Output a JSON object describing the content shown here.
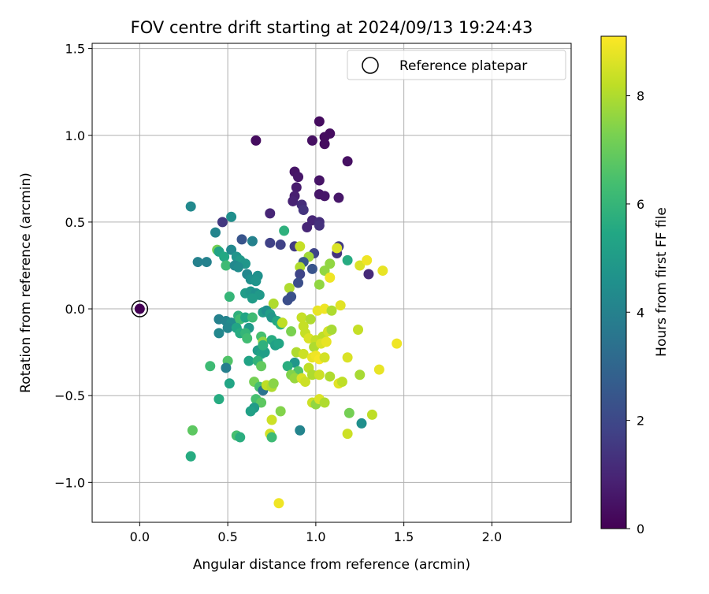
{
  "chart_data": {
    "type": "scatter",
    "title": "FOV centre drift starting at 2024/09/13 19:24:43",
    "xlabel": "Angular distance from reference (arcmin)",
    "ylabel": "Rotation from reference (arcmin)",
    "xlim": [
      -0.27,
      2.45
    ],
    "ylim": [
      -1.23,
      1.53
    ],
    "xticks": [
      0.0,
      0.5,
      1.0,
      1.5,
      2.0
    ],
    "xtick_labels": [
      "0.0",
      "0.5",
      "1.0",
      "1.5",
      "2.0"
    ],
    "yticks": [
      -1.0,
      -0.5,
      0.0,
      0.5,
      1.0,
      1.5
    ],
    "ytick_labels": [
      "−1.0",
      "−0.5",
      "0.0",
      "0.5",
      "1.0",
      "1.5"
    ],
    "grid": true,
    "legend": {
      "placement": "top-right",
      "entries": [
        {
          "label": "Reference platepar",
          "marker": "open-circle"
        }
      ]
    },
    "reference_point": {
      "x": 0.0,
      "y": 0.0,
      "t": 0.0
    },
    "colorbar": {
      "label": "Hours from first FF file",
      "colormap": "viridis",
      "range": [
        0,
        9.1
      ],
      "ticks": [
        0,
        2,
        4,
        6,
        8
      ],
      "tick_labels": [
        "0",
        "2",
        "4",
        "6",
        "8"
      ]
    },
    "points": [
      {
        "x": 0.66,
        "y": 0.97,
        "t": 0.3
      },
      {
        "x": 1.02,
        "y": 1.08,
        "t": 0.3
      },
      {
        "x": 1.08,
        "y": 1.01,
        "t": 0.3
      },
      {
        "x": 1.05,
        "y": 0.99,
        "t": 0.3
      },
      {
        "x": 0.98,
        "y": 0.97,
        "t": 0.4
      },
      {
        "x": 1.05,
        "y": 0.95,
        "t": 0.3
      },
      {
        "x": 1.18,
        "y": 0.85,
        "t": 0.4
      },
      {
        "x": 0.88,
        "y": 0.79,
        "t": 0.5
      },
      {
        "x": 0.9,
        "y": 0.76,
        "t": 0.6
      },
      {
        "x": 1.02,
        "y": 0.74,
        "t": 0.5
      },
      {
        "x": 0.89,
        "y": 0.7,
        "t": 0.7
      },
      {
        "x": 1.02,
        "y": 0.66,
        "t": 0.6
      },
      {
        "x": 1.05,
        "y": 0.65,
        "t": 0.6
      },
      {
        "x": 1.13,
        "y": 0.64,
        "t": 0.6
      },
      {
        "x": 0.88,
        "y": 0.65,
        "t": 0.8
      },
      {
        "x": 0.87,
        "y": 0.62,
        "t": 0.9
      },
      {
        "x": 0.92,
        "y": 0.6,
        "t": 1.2
      },
      {
        "x": 0.93,
        "y": 0.57,
        "t": 1.4
      },
      {
        "x": 0.74,
        "y": 0.55,
        "t": 1.0
      },
      {
        "x": 0.98,
        "y": 0.51,
        "t": 1.0
      },
      {
        "x": 1.02,
        "y": 0.5,
        "t": 1.2
      },
      {
        "x": 1.02,
        "y": 0.48,
        "t": 1.3
      },
      {
        "x": 0.95,
        "y": 0.47,
        "t": 1.0
      },
      {
        "x": 0.47,
        "y": 0.5,
        "t": 1.5
      },
      {
        "x": 0.29,
        "y": 0.59,
        "t": 4.3
      },
      {
        "x": 0.52,
        "y": 0.53,
        "t": 4.5
      },
      {
        "x": 0.43,
        "y": 0.44,
        "t": 4.1
      },
      {
        "x": 0.58,
        "y": 0.4,
        "t": 2.4
      },
      {
        "x": 0.64,
        "y": 0.39,
        "t": 4.0
      },
      {
        "x": 0.74,
        "y": 0.38,
        "t": 1.8
      },
      {
        "x": 0.8,
        "y": 0.37,
        "t": 1.8
      },
      {
        "x": 0.82,
        "y": 0.45,
        "t": 5.8
      },
      {
        "x": 0.88,
        "y": 0.36,
        "t": 1.6
      },
      {
        "x": 0.91,
        "y": 0.36,
        "t": 8.3
      },
      {
        "x": 1.13,
        "y": 0.36,
        "t": 1.6
      },
      {
        "x": 1.12,
        "y": 0.32,
        "t": 1.4
      },
      {
        "x": 0.99,
        "y": 0.32,
        "t": 1.9
      },
      {
        "x": 0.96,
        "y": 0.3,
        "t": 7.8
      },
      {
        "x": 0.93,
        "y": 0.27,
        "t": 2.5
      },
      {
        "x": 0.91,
        "y": 0.24,
        "t": 8.0
      },
      {
        "x": 1.05,
        "y": 0.22,
        "t": 7.6
      },
      {
        "x": 1.08,
        "y": 0.26,
        "t": 7.6
      },
      {
        "x": 1.18,
        "y": 0.28,
        "t": 5.6
      },
      {
        "x": 1.25,
        "y": 0.25,
        "t": 8.6
      },
      {
        "x": 1.29,
        "y": 0.28,
        "t": 8.9
      },
      {
        "x": 1.3,
        "y": 0.2,
        "t": 1.1
      },
      {
        "x": 1.38,
        "y": 0.22,
        "t": 8.8
      },
      {
        "x": 1.12,
        "y": 0.35,
        "t": 8.6
      },
      {
        "x": 0.44,
        "y": 0.34,
        "t": 7.2
      },
      {
        "x": 0.45,
        "y": 0.33,
        "t": 5.3
      },
      {
        "x": 0.48,
        "y": 0.3,
        "t": 5.5
      },
      {
        "x": 0.52,
        "y": 0.34,
        "t": 4.3
      },
      {
        "x": 0.55,
        "y": 0.3,
        "t": 4.7
      },
      {
        "x": 0.57,
        "y": 0.28,
        "t": 4.9
      },
      {
        "x": 0.6,
        "y": 0.26,
        "t": 4.8
      },
      {
        "x": 0.33,
        "y": 0.27,
        "t": 4.0
      },
      {
        "x": 0.38,
        "y": 0.27,
        "t": 4.0
      },
      {
        "x": 0.49,
        "y": 0.25,
        "t": 6.2
      },
      {
        "x": 0.54,
        "y": 0.25,
        "t": 4.2
      },
      {
        "x": 0.56,
        "y": 0.24,
        "t": 4.4
      },
      {
        "x": 0.61,
        "y": 0.2,
        "t": 4.2
      },
      {
        "x": 0.63,
        "y": 0.17,
        "t": 4.5
      },
      {
        "x": 0.67,
        "y": 0.19,
        "t": 4.6
      },
      {
        "x": 0.66,
        "y": 0.16,
        "t": 4.7
      },
      {
        "x": 0.91,
        "y": 0.2,
        "t": 1.9
      },
      {
        "x": 0.9,
        "y": 0.15,
        "t": 2.2
      },
      {
        "x": 0.98,
        "y": 0.23,
        "t": 2.4
      },
      {
        "x": 1.02,
        "y": 0.14,
        "t": 7.6
      },
      {
        "x": 1.08,
        "y": 0.18,
        "t": 8.9
      },
      {
        "x": 0.85,
        "y": 0.12,
        "t": 8.0
      },
      {
        "x": 0.86,
        "y": 0.07,
        "t": 2.3
      },
      {
        "x": 0.84,
        "y": 0.05,
        "t": 2.2
      },
      {
        "x": 0.6,
        "y": 0.09,
        "t": 5.0
      },
      {
        "x": 0.63,
        "y": 0.1,
        "t": 4.8
      },
      {
        "x": 0.66,
        "y": 0.09,
        "t": 4.6
      },
      {
        "x": 0.68,
        "y": 0.08,
        "t": 4.9
      },
      {
        "x": 0.64,
        "y": 0.06,
        "t": 5.0
      },
      {
        "x": 0.51,
        "y": 0.07,
        "t": 6.0
      },
      {
        "x": 0.76,
        "y": 0.03,
        "t": 8.0
      },
      {
        "x": 0.7,
        "y": -0.02,
        "t": 5.0
      },
      {
        "x": 0.72,
        "y": -0.01,
        "t": 4.5
      },
      {
        "x": 0.74,
        "y": -0.03,
        "t": 5.1
      },
      {
        "x": 0.75,
        "y": -0.05,
        "t": 4.8
      },
      {
        "x": 0.78,
        "y": -0.07,
        "t": 5.5
      },
      {
        "x": 0.8,
        "y": -0.09,
        "t": 5.9
      },
      {
        "x": 0.81,
        "y": -0.08,
        "t": 8.2
      },
      {
        "x": 0.92,
        "y": -0.05,
        "t": 8.3
      },
      {
        "x": 0.97,
        "y": -0.06,
        "t": 8.0
      },
      {
        "x": 1.01,
        "y": -0.01,
        "t": 8.8
      },
      {
        "x": 1.05,
        "y": 0.0,
        "t": 8.9
      },
      {
        "x": 1.09,
        "y": -0.01,
        "t": 8.0
      },
      {
        "x": 1.14,
        "y": 0.02,
        "t": 8.7
      },
      {
        "x": 0.45,
        "y": -0.06,
        "t": 4.0
      },
      {
        "x": 0.49,
        "y": -0.07,
        "t": 4.1
      },
      {
        "x": 0.52,
        "y": -0.08,
        "t": 4.4
      },
      {
        "x": 0.56,
        "y": -0.04,
        "t": 5.8
      },
      {
        "x": 0.57,
        "y": -0.06,
        "t": 6.3
      },
      {
        "x": 0.6,
        "y": -0.05,
        "t": 5.4
      },
      {
        "x": 0.64,
        "y": -0.05,
        "t": 6.2
      },
      {
        "x": 0.62,
        "y": -0.11,
        "t": 4.9
      },
      {
        "x": 0.45,
        "y": -0.14,
        "t": 4.2
      },
      {
        "x": 0.5,
        "y": -0.11,
        "t": 4.2
      },
      {
        "x": 0.55,
        "y": -0.11,
        "t": 5.4
      },
      {
        "x": 0.57,
        "y": -0.14,
        "t": 5.6
      },
      {
        "x": 0.6,
        "y": -0.14,
        "t": 6.0
      },
      {
        "x": 0.61,
        "y": -0.17,
        "t": 6.3
      },
      {
        "x": 0.69,
        "y": -0.16,
        "t": 6.4
      },
      {
        "x": 0.7,
        "y": -0.19,
        "t": 7.6
      },
      {
        "x": 0.75,
        "y": -0.18,
        "t": 5.6
      },
      {
        "x": 0.77,
        "y": -0.21,
        "t": 5.2
      },
      {
        "x": 0.79,
        "y": -0.2,
        "t": 5.4
      },
      {
        "x": 0.86,
        "y": -0.13,
        "t": 7.3
      },
      {
        "x": 0.93,
        "y": -0.1,
        "t": 8.3
      },
      {
        "x": 0.94,
        "y": -0.14,
        "t": 8.3
      },
      {
        "x": 0.96,
        "y": -0.17,
        "t": 8.6
      },
      {
        "x": 1.0,
        "y": -0.18,
        "t": 8.3
      },
      {
        "x": 1.04,
        "y": -0.16,
        "t": 8.2
      },
      {
        "x": 1.07,
        "y": -0.13,
        "t": 8.5
      },
      {
        "x": 1.09,
        "y": -0.12,
        "t": 7.9
      },
      {
        "x": 0.99,
        "y": -0.22,
        "t": 8.0
      },
      {
        "x": 1.03,
        "y": -0.2,
        "t": 8.6
      },
      {
        "x": 1.06,
        "y": -0.19,
        "t": 8.8
      },
      {
        "x": 1.24,
        "y": -0.12,
        "t": 8.3
      },
      {
        "x": 1.46,
        "y": -0.2,
        "t": 8.9
      },
      {
        "x": 0.67,
        "y": -0.24,
        "t": 5.0
      },
      {
        "x": 0.69,
        "y": -0.26,
        "t": 5.3
      },
      {
        "x": 0.71,
        "y": -0.25,
        "t": 5.1
      },
      {
        "x": 0.7,
        "y": -0.21,
        "t": 5.8
      },
      {
        "x": 0.89,
        "y": -0.25,
        "t": 8.0
      },
      {
        "x": 0.93,
        "y": -0.26,
        "t": 8.4
      },
      {
        "x": 0.98,
        "y": -0.28,
        "t": 8.8
      },
      {
        "x": 1.0,
        "y": -0.27,
        "t": 8.9
      },
      {
        "x": 1.02,
        "y": -0.29,
        "t": 9.0
      },
      {
        "x": 1.05,
        "y": -0.28,
        "t": 8.5
      },
      {
        "x": 0.88,
        "y": -0.31,
        "t": 4.8
      },
      {
        "x": 0.84,
        "y": -0.33,
        "t": 5.7
      },
      {
        "x": 0.9,
        "y": -0.36,
        "t": 6.6
      },
      {
        "x": 0.86,
        "y": -0.38,
        "t": 7.4
      },
      {
        "x": 0.88,
        "y": -0.4,
        "t": 7.7
      },
      {
        "x": 0.92,
        "y": -0.4,
        "t": 8.6
      },
      {
        "x": 0.94,
        "y": -0.42,
        "t": 8.4
      },
      {
        "x": 0.96,
        "y": -0.34,
        "t": 8.2
      },
      {
        "x": 0.98,
        "y": -0.38,
        "t": 8.0
      },
      {
        "x": 1.02,
        "y": -0.38,
        "t": 8.4
      },
      {
        "x": 1.08,
        "y": -0.39,
        "t": 8.0
      },
      {
        "x": 1.13,
        "y": -0.43,
        "t": 8.7
      },
      {
        "x": 1.15,
        "y": -0.42,
        "t": 8.2
      },
      {
        "x": 1.18,
        "y": -0.28,
        "t": 8.6
      },
      {
        "x": 1.25,
        "y": -0.38,
        "t": 7.9
      },
      {
        "x": 1.36,
        "y": -0.35,
        "t": 8.8
      },
      {
        "x": 0.4,
        "y": -0.33,
        "t": 6.2
      },
      {
        "x": 0.5,
        "y": -0.3,
        "t": 6.6
      },
      {
        "x": 0.49,
        "y": -0.34,
        "t": 3.9
      },
      {
        "x": 0.62,
        "y": -0.3,
        "t": 5.3
      },
      {
        "x": 0.67,
        "y": -0.3,
        "t": 5.9
      },
      {
        "x": 0.69,
        "y": -0.33,
        "t": 6.9
      },
      {
        "x": 0.65,
        "y": -0.42,
        "t": 7.2
      },
      {
        "x": 0.68,
        "y": -0.45,
        "t": 6.4
      },
      {
        "x": 0.7,
        "y": -0.47,
        "t": 3.5
      },
      {
        "x": 0.72,
        "y": -0.44,
        "t": 8.2
      },
      {
        "x": 0.75,
        "y": -0.45,
        "t": 8.0
      },
      {
        "x": 0.76,
        "y": -0.43,
        "t": 7.5
      },
      {
        "x": 0.51,
        "y": -0.43,
        "t": 5.4
      },
      {
        "x": 0.45,
        "y": -0.52,
        "t": 5.6
      },
      {
        "x": 0.66,
        "y": -0.52,
        "t": 6.4
      },
      {
        "x": 0.69,
        "y": -0.54,
        "t": 6.8
      },
      {
        "x": 0.65,
        "y": -0.57,
        "t": 5.0
      },
      {
        "x": 0.63,
        "y": -0.59,
        "t": 5.2
      },
      {
        "x": 0.8,
        "y": -0.59,
        "t": 7.4
      },
      {
        "x": 0.75,
        "y": -0.64,
        "t": 8.4
      },
      {
        "x": 0.98,
        "y": -0.54,
        "t": 8.4
      },
      {
        "x": 1.0,
        "y": -0.55,
        "t": 7.6
      },
      {
        "x": 1.02,
        "y": -0.52,
        "t": 8.6
      },
      {
        "x": 1.05,
        "y": -0.54,
        "t": 8.0
      },
      {
        "x": 1.19,
        "y": -0.6,
        "t": 7.2
      },
      {
        "x": 1.26,
        "y": -0.66,
        "t": 4.5
      },
      {
        "x": 1.32,
        "y": -0.61,
        "t": 8.2
      },
      {
        "x": 0.3,
        "y": -0.7,
        "t": 6.8
      },
      {
        "x": 0.55,
        "y": -0.73,
        "t": 6.4
      },
      {
        "x": 0.57,
        "y": -0.74,
        "t": 5.7
      },
      {
        "x": 0.74,
        "y": -0.72,
        "t": 8.5
      },
      {
        "x": 0.75,
        "y": -0.74,
        "t": 6.2
      },
      {
        "x": 0.91,
        "y": -0.7,
        "t": 4.1
      },
      {
        "x": 1.18,
        "y": -0.72,
        "t": 8.4
      },
      {
        "x": 0.29,
        "y": -0.85,
        "t": 5.6
      },
      {
        "x": 0.79,
        "y": -1.12,
        "t": 8.9
      }
    ]
  }
}
